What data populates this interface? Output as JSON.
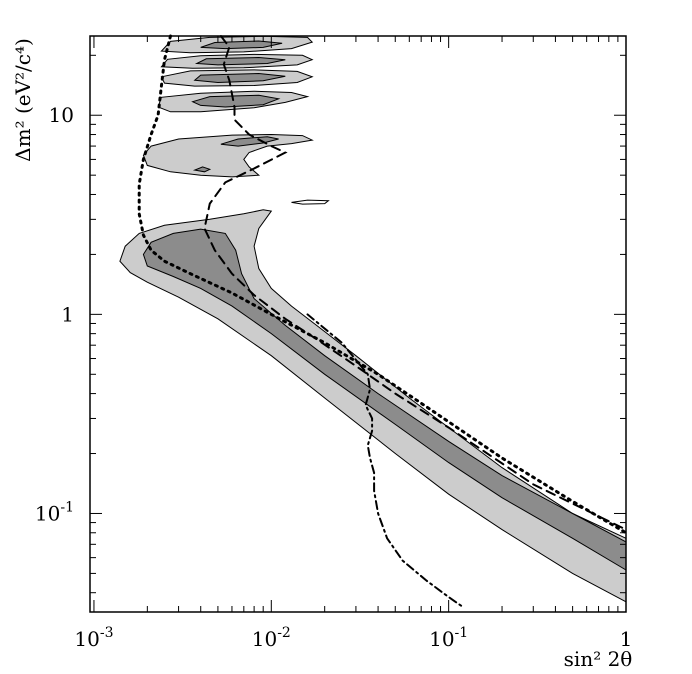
{
  "chart_data": {
    "type": "contour",
    "title": "",
    "xlabel": "sin² 2θ",
    "ylabel": "Δm² (eV²/c⁴)",
    "xscale": "log",
    "yscale": "log",
    "xlim": [
      0.00095,
      1.0
    ],
    "ylim": [
      0.032,
      25
    ],
    "x_ticks": [
      {
        "value": 0.001,
        "base": "10",
        "exp": "-3"
      },
      {
        "value": 0.01,
        "base": "10",
        "exp": "-2"
      },
      {
        "value": 0.1,
        "base": "10",
        "exp": "-1"
      },
      {
        "value": 1,
        "base": "1",
        "exp": ""
      }
    ],
    "y_ticks": [
      {
        "value": 0.1,
        "base": "10",
        "exp": "-1"
      },
      {
        "value": 1,
        "base": "1",
        "exp": ""
      },
      {
        "value": 10,
        "base": "10",
        "exp": ""
      }
    ],
    "colors": {
      "outer_region": "#cccccc",
      "inner_region": "#8c8c8c",
      "lines": "#000000",
      "background": "#ffffff"
    },
    "regions": [
      {
        "level": "outer",
        "points": [
          [
            1.0,
            0.036
          ],
          [
            0.5,
            0.05
          ],
          [
            0.2,
            0.083
          ],
          [
            0.1,
            0.125
          ],
          [
            0.05,
            0.2
          ],
          [
            0.02,
            0.38
          ],
          [
            0.01,
            0.62
          ],
          [
            0.005,
            0.95
          ],
          [
            0.003,
            1.22
          ],
          [
            0.002,
            1.45
          ],
          [
            0.0016,
            1.62
          ],
          [
            0.0014,
            1.85
          ],
          [
            0.0015,
            2.2
          ],
          [
            0.0018,
            2.55
          ],
          [
            0.0025,
            2.8
          ],
          [
            0.0045,
            3.0
          ],
          [
            0.007,
            3.2
          ],
          [
            0.009,
            3.35
          ],
          [
            0.01,
            3.3
          ],
          [
            0.0085,
            2.7
          ],
          [
            0.008,
            2.2
          ],
          [
            0.0085,
            1.7
          ],
          [
            0.01,
            1.35
          ],
          [
            0.013,
            1.1
          ],
          [
            0.018,
            0.88
          ],
          [
            0.03,
            0.62
          ],
          [
            0.06,
            0.38
          ],
          [
            0.1,
            0.27
          ],
          [
            0.2,
            0.17
          ],
          [
            0.5,
            0.1
          ],
          [
            1.0,
            0.075
          ]
        ]
      },
      {
        "level": "inner",
        "points": [
          [
            1.0,
            0.052
          ],
          [
            0.5,
            0.075
          ],
          [
            0.2,
            0.12
          ],
          [
            0.1,
            0.18
          ],
          [
            0.05,
            0.28
          ],
          [
            0.02,
            0.5
          ],
          [
            0.01,
            0.8
          ],
          [
            0.006,
            1.1
          ],
          [
            0.004,
            1.35
          ],
          [
            0.0028,
            1.55
          ],
          [
            0.002,
            1.75
          ],
          [
            0.0019,
            2.0
          ],
          [
            0.0021,
            2.3
          ],
          [
            0.0028,
            2.55
          ],
          [
            0.004,
            2.68
          ],
          [
            0.0055,
            2.55
          ],
          [
            0.0063,
            2.1
          ],
          [
            0.0068,
            1.6
          ],
          [
            0.008,
            1.2
          ],
          [
            0.012,
            0.88
          ],
          [
            0.02,
            0.62
          ],
          [
            0.04,
            0.4
          ],
          [
            0.1,
            0.23
          ],
          [
            0.2,
            0.155
          ],
          [
            0.5,
            0.1
          ],
          [
            1.0,
            0.072
          ]
        ]
      },
      {
        "level": "outer",
        "points": [
          [
            0.0019,
            6.3
          ],
          [
            0.0021,
            7.0
          ],
          [
            0.003,
            7.6
          ],
          [
            0.006,
            7.95
          ],
          [
            0.01,
            8.0
          ],
          [
            0.015,
            7.9
          ],
          [
            0.017,
            7.5
          ],
          [
            0.013,
            7.2
          ],
          [
            0.0095,
            7.0
          ],
          [
            0.0075,
            6.5
          ],
          [
            0.007,
            6.0
          ],
          [
            0.0075,
            5.5
          ],
          [
            0.0085,
            5.0
          ],
          [
            0.006,
            4.9
          ],
          [
            0.004,
            5.0
          ],
          [
            0.0027,
            5.2
          ],
          [
            0.002,
            5.6
          ]
        ]
      },
      {
        "level": "inner",
        "points": [
          [
            0.0037,
            5.3
          ],
          [
            0.0041,
            5.5
          ],
          [
            0.0045,
            5.35
          ],
          [
            0.0042,
            5.2
          ]
        ]
      },
      {
        "level": "inner",
        "points": [
          [
            0.0052,
            7.15
          ],
          [
            0.0065,
            7.6
          ],
          [
            0.0095,
            7.8
          ],
          [
            0.011,
            7.6
          ],
          [
            0.009,
            7.25
          ],
          [
            0.0065,
            7.0
          ]
        ]
      },
      {
        "level": "outer",
        "points": [
          [
            0.0023,
            11.0
          ],
          [
            0.0024,
            12.3
          ],
          [
            0.004,
            12.9
          ],
          [
            0.008,
            13.2
          ],
          [
            0.013,
            13.0
          ],
          [
            0.016,
            12.4
          ],
          [
            0.012,
            11.6
          ],
          [
            0.008,
            10.9
          ],
          [
            0.004,
            10.4
          ],
          [
            0.0027,
            10.4
          ]
        ]
      },
      {
        "level": "inner",
        "points": [
          [
            0.0036,
            11.7
          ],
          [
            0.0045,
            12.4
          ],
          [
            0.0085,
            12.6
          ],
          [
            0.011,
            12.1
          ],
          [
            0.009,
            11.3
          ],
          [
            0.0055,
            11.0
          ],
          [
            0.004,
            11.2
          ]
        ]
      },
      {
        "level": "outer",
        "points": [
          [
            0.0025,
            14.5
          ],
          [
            0.0024,
            15.6
          ],
          [
            0.0035,
            16.7
          ],
          [
            0.008,
            16.9
          ],
          [
            0.014,
            16.6
          ],
          [
            0.017,
            15.6
          ],
          [
            0.014,
            14.6
          ],
          [
            0.008,
            14.1
          ],
          [
            0.0037,
            14.0
          ]
        ]
      },
      {
        "level": "inner",
        "points": [
          [
            0.0037,
            15.0
          ],
          [
            0.004,
            15.9
          ],
          [
            0.0085,
            16.2
          ],
          [
            0.012,
            15.7
          ],
          [
            0.009,
            14.9
          ],
          [
            0.005,
            14.6
          ]
        ]
      },
      {
        "level": "outer",
        "points": [
          [
            0.0024,
            17.5
          ],
          [
            0.0026,
            19.1
          ],
          [
            0.004,
            19.9
          ],
          [
            0.008,
            20.2
          ],
          [
            0.015,
            20.0
          ],
          [
            0.017,
            19.0
          ],
          [
            0.014,
            17.9
          ],
          [
            0.007,
            17.3
          ],
          [
            0.0036,
            17.2
          ]
        ]
      },
      {
        "level": "inner",
        "points": [
          [
            0.0038,
            18.2
          ],
          [
            0.0043,
            19.2
          ],
          [
            0.0085,
            19.5
          ],
          [
            0.012,
            19.0
          ],
          [
            0.0095,
            18.2
          ],
          [
            0.005,
            17.9
          ]
        ]
      },
      {
        "level": "outer",
        "points": [
          [
            0.0024,
            21.0
          ],
          [
            0.0027,
            23.5
          ],
          [
            0.0045,
            24.6
          ],
          [
            0.009,
            24.9
          ],
          [
            0.016,
            24.6
          ],
          [
            0.017,
            23.3
          ],
          [
            0.013,
            21.6
          ],
          [
            0.007,
            20.8
          ],
          [
            0.0035,
            20.6
          ]
        ]
      },
      {
        "level": "inner",
        "points": [
          [
            0.004,
            21.9
          ],
          [
            0.0048,
            23.2
          ],
          [
            0.0085,
            23.6
          ],
          [
            0.0115,
            23.0
          ],
          [
            0.009,
            21.9
          ],
          [
            0.0055,
            21.6
          ]
        ]
      },
      {
        "level": "contour_only",
        "points": [
          [
            0.013,
            3.65
          ],
          [
            0.016,
            3.75
          ],
          [
            0.021,
            3.72
          ],
          [
            0.02,
            3.6
          ],
          [
            0.015,
            3.58
          ]
        ]
      }
    ],
    "series": [
      {
        "style": "dashed",
        "points": [
          [
            0.0052,
            25
          ],
          [
            0.0058,
            22
          ],
          [
            0.0054,
            18
          ],
          [
            0.0058,
            15
          ],
          [
            0.0062,
            11
          ],
          [
            0.0062,
            9.5
          ],
          [
            0.0075,
            8.0
          ],
          [
            0.01,
            7.0
          ],
          [
            0.012,
            6.5
          ],
          [
            0.008,
            5.4
          ],
          [
            0.0055,
            4.6
          ],
          [
            0.0045,
            3.6
          ],
          [
            0.0042,
            2.7
          ],
          [
            0.0048,
            2.1
          ],
          [
            0.006,
            1.6
          ],
          [
            0.008,
            1.25
          ],
          [
            0.012,
            0.95
          ],
          [
            0.018,
            0.75
          ],
          [
            0.03,
            0.55
          ],
          [
            0.05,
            0.4
          ],
          [
            0.1,
            0.27
          ],
          [
            0.3,
            0.14
          ],
          [
            1.0,
            0.083
          ]
        ]
      },
      {
        "style": "dotted",
        "points": [
          [
            0.0027,
            25
          ],
          [
            0.0025,
            19
          ],
          [
            0.0024,
            14
          ],
          [
            0.0023,
            10
          ],
          [
            0.0021,
            8.0
          ],
          [
            0.0019,
            6.0
          ],
          [
            0.0018,
            4.5
          ],
          [
            0.0018,
            3.2
          ],
          [
            0.0019,
            2.5
          ],
          [
            0.0021,
            2.1
          ],
          [
            0.0025,
            1.85
          ],
          [
            0.0035,
            1.6
          ],
          [
            0.006,
            1.28
          ],
          [
            0.01,
            1.0
          ],
          [
            0.02,
            0.72
          ],
          [
            0.04,
            0.5
          ],
          [
            0.08,
            0.33
          ],
          [
            0.2,
            0.19
          ],
          [
            0.5,
            0.115
          ],
          [
            1.0,
            0.08
          ]
        ]
      },
      {
        "style": "dash-dot",
        "points": [
          [
            0.016,
            1.0
          ],
          [
            0.025,
            0.72
          ],
          [
            0.035,
            0.5
          ],
          [
            0.036,
            0.42
          ],
          [
            0.034,
            0.35
          ],
          [
            0.037,
            0.3
          ],
          [
            0.037,
            0.26
          ],
          [
            0.035,
            0.22
          ],
          [
            0.036,
            0.19
          ],
          [
            0.038,
            0.16
          ],
          [
            0.038,
            0.13
          ],
          [
            0.04,
            0.1
          ],
          [
            0.045,
            0.075
          ],
          [
            0.055,
            0.058
          ],
          [
            0.075,
            0.046
          ],
          [
            0.1,
            0.038
          ],
          [
            0.12,
            0.034
          ]
        ]
      }
    ]
  }
}
